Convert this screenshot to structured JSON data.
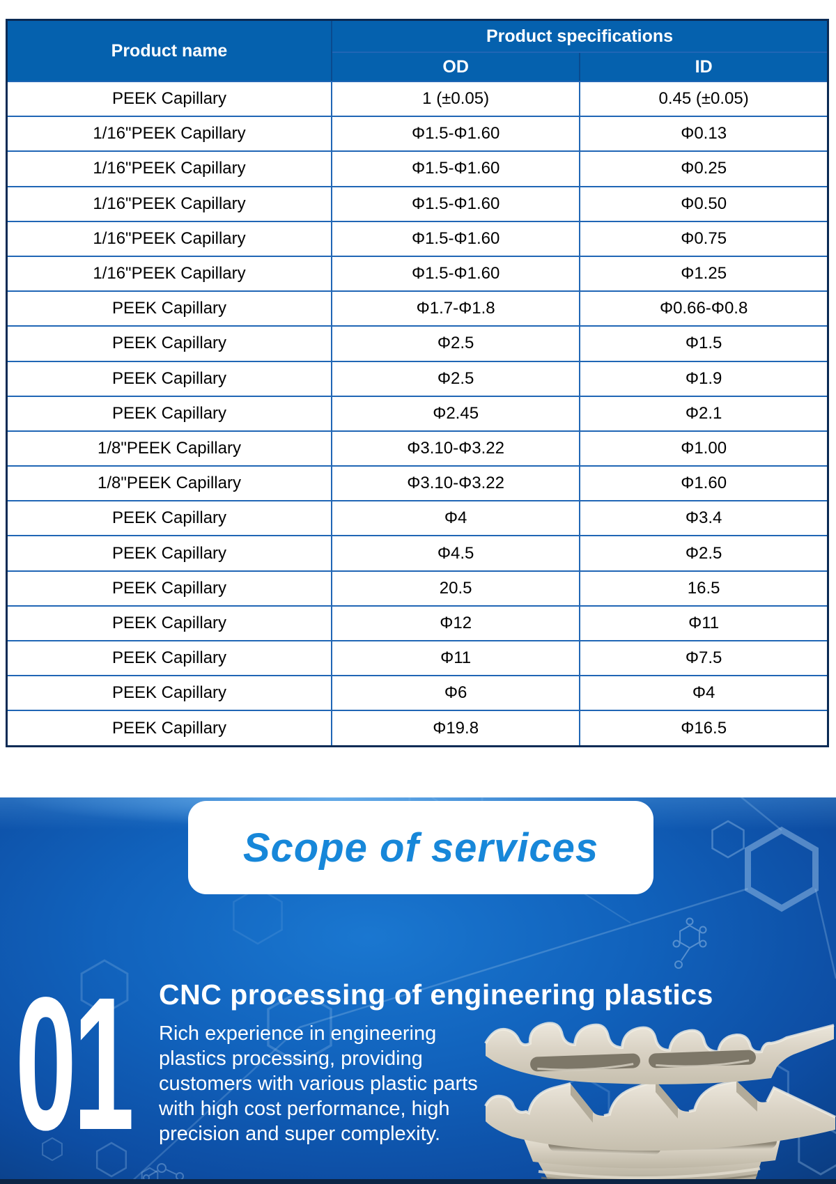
{
  "table": {
    "headers": {
      "product_name": "Product name",
      "product_specifications": "Product specifications",
      "od": "OD",
      "id": "ID"
    },
    "rows": [
      {
        "name": "PEEK Capillary",
        "od": "1 (±0.05)",
        "id": "0.45 (±0.05)"
      },
      {
        "name": "1/16\"PEEK Capillary",
        "od": "Φ1.5-Φ1.60",
        "id": "Φ0.13"
      },
      {
        "name": "1/16\"PEEK Capillary",
        "od": "Φ1.5-Φ1.60",
        "id": "Φ0.25"
      },
      {
        "name": "1/16\"PEEK Capillary",
        "od": "Φ1.5-Φ1.60",
        "id": "Φ0.50"
      },
      {
        "name": "1/16\"PEEK Capillary",
        "od": "Φ1.5-Φ1.60",
        "id": "Φ0.75"
      },
      {
        "name": "1/16\"PEEK Capillary",
        "od": "Φ1.5-Φ1.60",
        "id": "Φ1.25"
      },
      {
        "name": "PEEK Capillary",
        "od": "Φ1.7-Φ1.8",
        "id": "Φ0.66-Φ0.8"
      },
      {
        "name": "PEEK Capillary",
        "od": "Φ2.5",
        "id": "Φ1.5"
      },
      {
        "name": "PEEK Capillary",
        "od": "Φ2.5",
        "id": "Φ1.9"
      },
      {
        "name": "PEEK Capillary",
        "od": "Φ2.45",
        "id": "Φ2.1"
      },
      {
        "name": "1/8\"PEEK Capillary",
        "od": "Φ3.10-Φ3.22",
        "id": "Φ1.00"
      },
      {
        "name": "1/8\"PEEK Capillary",
        "od": "Φ3.10-Φ3.22",
        "id": "Φ1.60"
      },
      {
        "name": "PEEK Capillary",
        "od": "Φ4",
        "id": "Φ3.4"
      },
      {
        "name": "PEEK Capillary",
        "od": "Φ4.5",
        "id": "Φ2.5"
      },
      {
        "name": "PEEK Capillary",
        "od": "20.5",
        "id": "16.5"
      },
      {
        "name": "PEEK Capillary",
        "od": "Φ12",
        "id": "Φ11"
      },
      {
        "name": "PEEK Capillary",
        "od": "Φ11",
        "id": "Φ7.5"
      },
      {
        "name": "PEEK Capillary",
        "od": "Φ6",
        "id": "Φ4"
      },
      {
        "name": "PEEK Capillary",
        "od": "Φ19.8",
        "id": "Φ16.5"
      }
    ]
  },
  "services": {
    "banner_title": "Scope of services",
    "item": {
      "number": "01",
      "title": "CNC processing of engineering plastics",
      "body": "Rich experience in engineering plastics processing, providing customers with various plastic parts with high cost performance, high precision and super complexity."
    },
    "image_name": "cnc-machined-plastic-part"
  },
  "colors": {
    "table_header_blue": "#0561ae",
    "table_border_blue": "#2066b5",
    "table_outer_border": "#0b2b55",
    "banner_text_blue": "#1787d9",
    "section_bright_blue": "#1a77d0",
    "section_deep_navy": "#061f4c",
    "part_beige": "#d5cec0"
  }
}
